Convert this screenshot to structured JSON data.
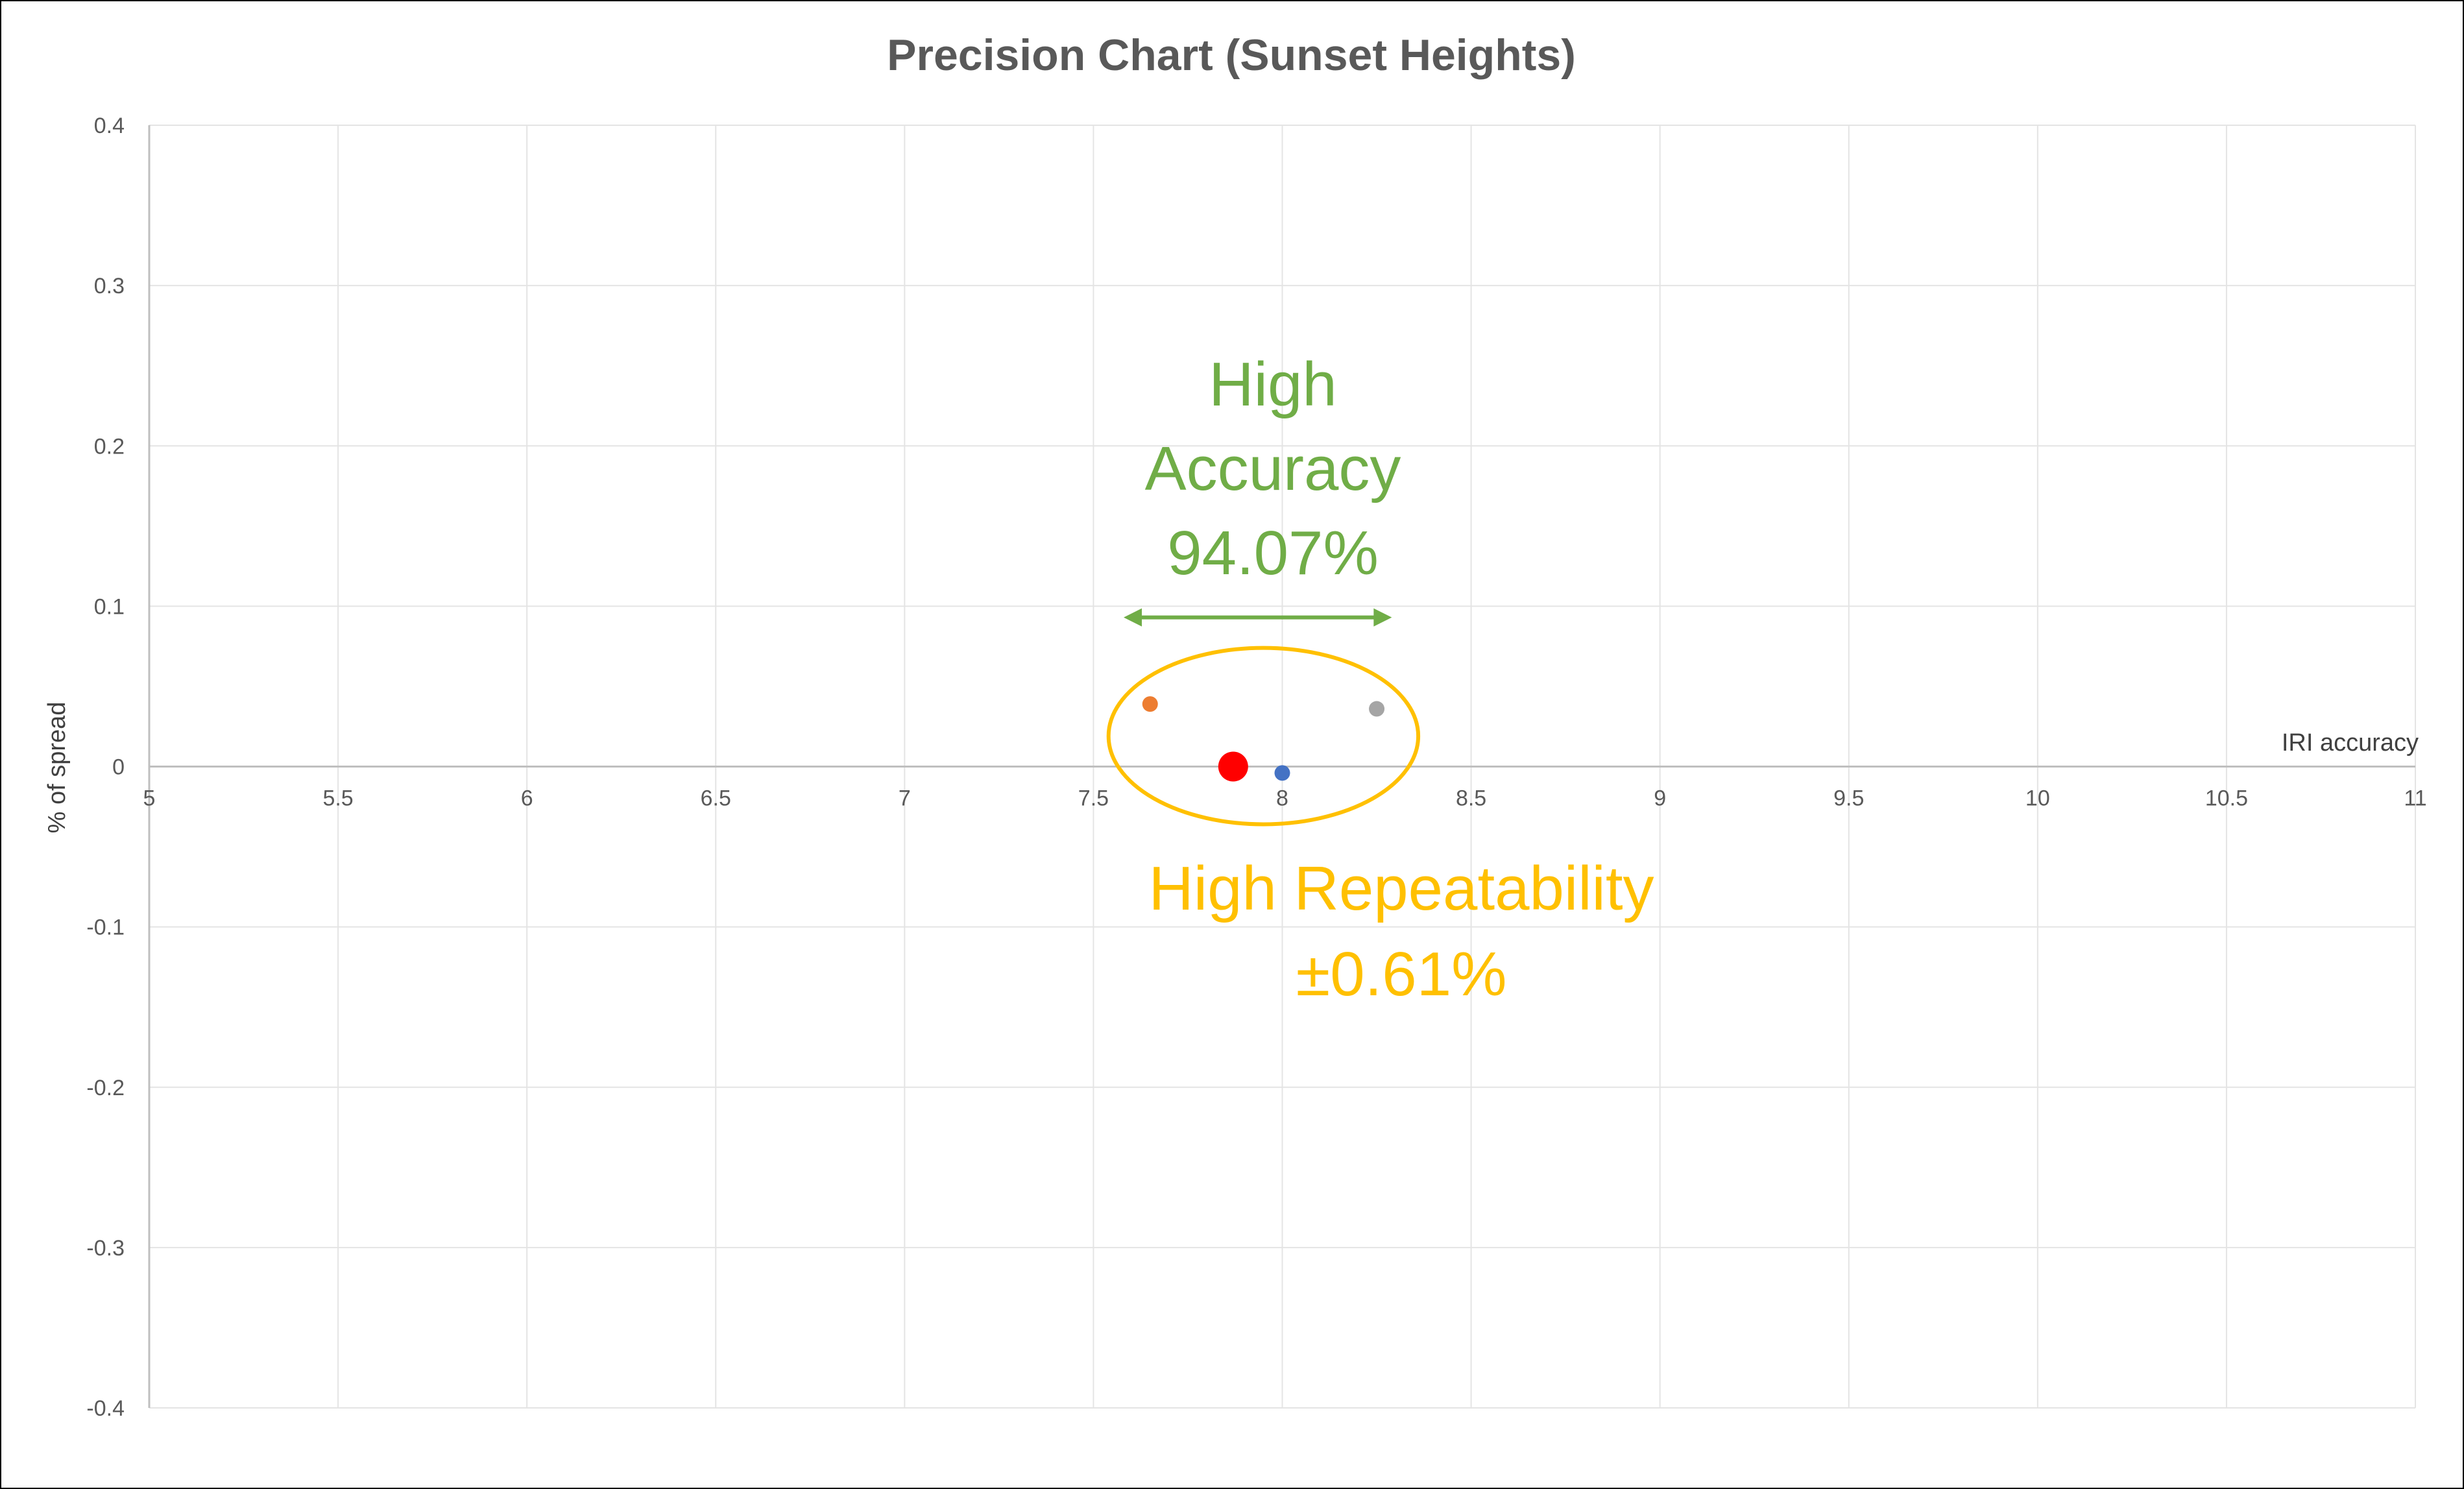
{
  "chart_data": {
    "type": "scatter",
    "title": "Precision Chart (Sunset Heights)",
    "xlabel": "IRI accuracy",
    "ylabel": "% of spread",
    "xlim": [
      5,
      11
    ],
    "ylim": [
      -0.4,
      0.4
    ],
    "x_ticks": [
      5,
      5.5,
      6,
      6.5,
      7,
      7.5,
      8,
      8.5,
      9,
      9.5,
      10,
      10.5,
      11
    ],
    "y_ticks": [
      0.4,
      0.3,
      0.2,
      0.1,
      0,
      -0.1,
      -0.2,
      -0.3,
      -0.4
    ],
    "grid": true,
    "legend": "none",
    "points": [
      {
        "x": 7.65,
        "y": 0.039,
        "color": "#ED7D31",
        "size": "small"
      },
      {
        "x": 7.87,
        "y": 0.0,
        "color": "#FF0000",
        "size": "large"
      },
      {
        "x": 8.0,
        "y": -0.004,
        "color": "#4472C4",
        "size": "small"
      },
      {
        "x": 8.25,
        "y": 0.036,
        "color": "#A5A5A5",
        "size": "small"
      }
    ],
    "annotations": {
      "accuracy": {
        "lines": [
          "High",
          "Accuracy",
          "94.07%"
        ],
        "color": "#70AD47",
        "arrow_x_range": [
          7.58,
          8.29
        ],
        "arrow_y": 0.093
      },
      "repeatability": {
        "lines": [
          "High Repeatability",
          "±0.61%"
        ],
        "color": "#FFC000",
        "ellipse_center": [
          7.95,
          0.019
        ],
        "ellipse_radius": [
          0.41,
          0.055
        ]
      }
    }
  }
}
